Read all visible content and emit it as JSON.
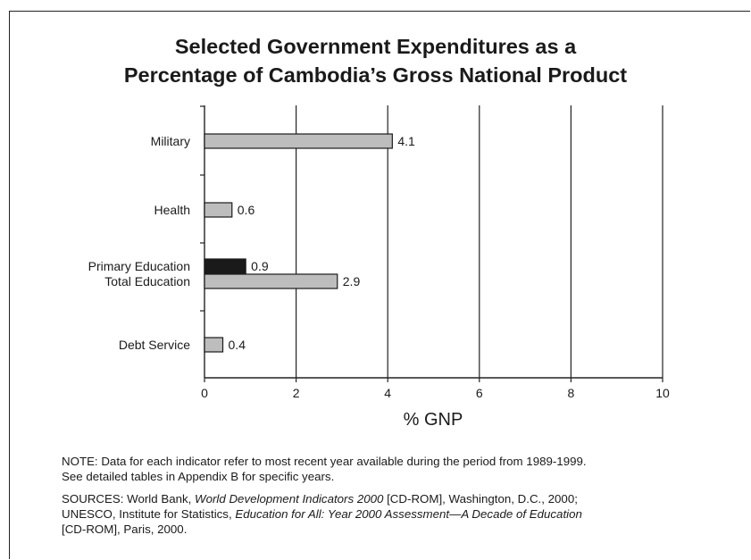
{
  "chart_data": {
    "type": "bar",
    "orientation": "horizontal",
    "title_line1": "Selected Government Expenditures as a",
    "title_line2": "Percentage of Cambodia’s Gross National Product",
    "xlabel": "% GNP",
    "xlim": [
      0,
      10
    ],
    "xticks": [
      "0",
      "2",
      "4",
      "6",
      "8",
      "10"
    ],
    "grid": "vertical",
    "bars": [
      {
        "category": "Military",
        "value": 4.1,
        "label": "4.1",
        "color": "#bdbdbd"
      },
      {
        "category": "Health",
        "value": 0.6,
        "label": "0.6",
        "color": "#bdbdbd"
      },
      {
        "category": "Primary Education",
        "value": 0.9,
        "label": "0.9",
        "color": "#1a1a1a"
      },
      {
        "category": "Total Education",
        "value": 2.9,
        "label": "2.9",
        "color": "#bdbdbd"
      },
      {
        "category": "Debt Service",
        "value": 0.4,
        "label": "0.4",
        "color": "#bdbdbd"
      }
    ]
  },
  "notes": {
    "note_line1": "NOTE: Data for each indicator refer to most recent year available during the period from 1989-1999.",
    "note_line2": "See detailed tables in Appendix B for specific years.",
    "src_a": "SOURCES: World Bank, ",
    "src_b": "World Development Indicators 2000",
    "src_c": " [CD-ROM], Washington, D.C., 2000;",
    "src_d": "UNESCO, Institute for Statistics, ",
    "src_e": "Education for All: Year 2000 Assessment—A Decade of Education",
    "src_f": "[CD-ROM], Paris, 2000."
  }
}
